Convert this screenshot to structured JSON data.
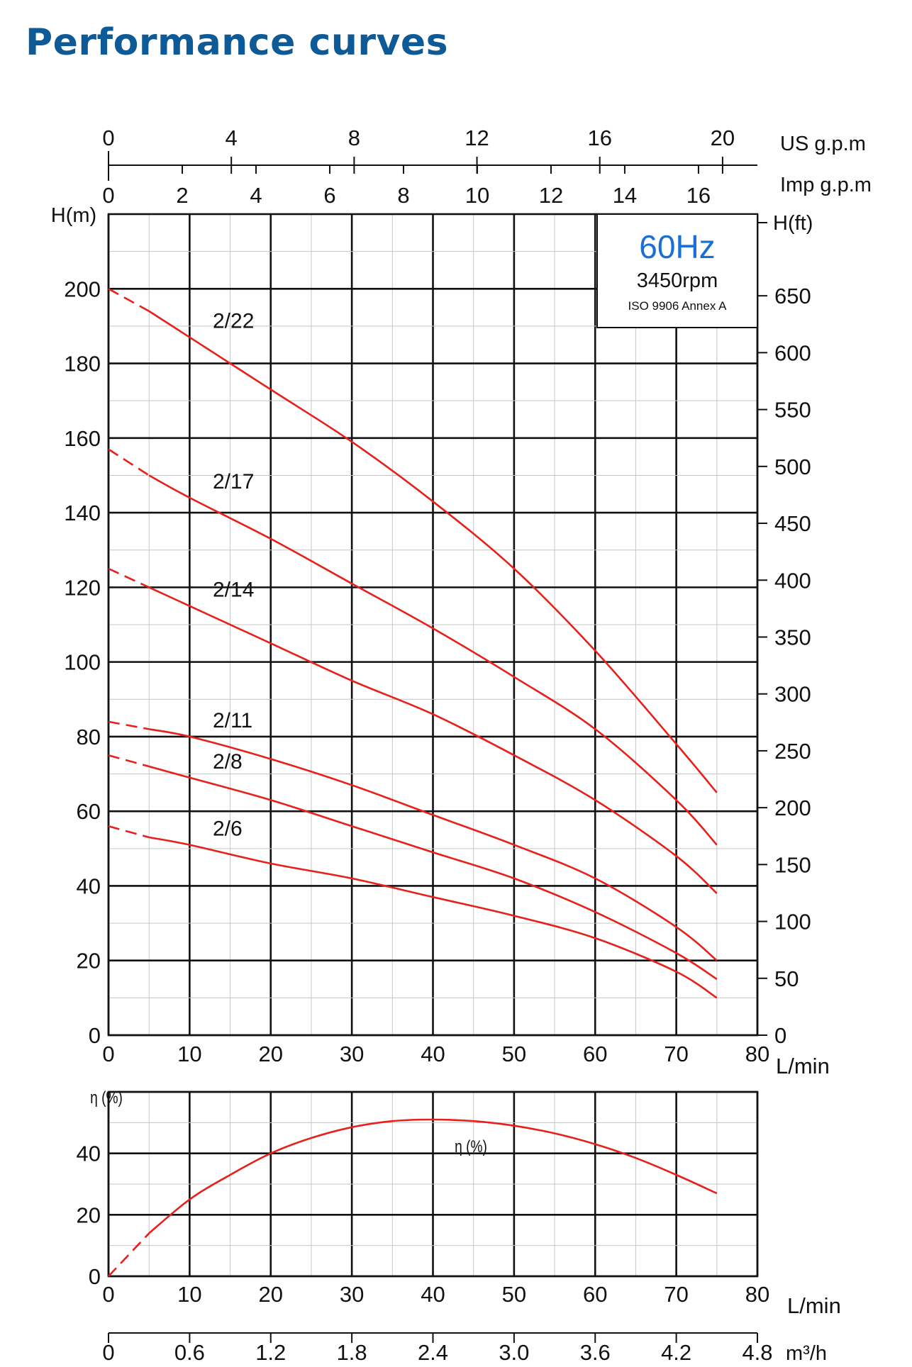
{
  "page": {
    "title": "Performance curves"
  },
  "chart_data": {
    "type": "line",
    "info_box": {
      "frequency": "60Hz",
      "speed": "3450rpm",
      "standard": "ISO 9906 Annex A"
    },
    "axes": {
      "flow": {
        "label": "L/min",
        "ticks": [
          0,
          10,
          20,
          30,
          40,
          50,
          60,
          70,
          80
        ],
        "range": [
          0,
          80
        ]
      },
      "head_m": {
        "label": "H(m)",
        "ticks": [
          0,
          20,
          40,
          60,
          80,
          100,
          120,
          140,
          160,
          180,
          200
        ],
        "range": [
          0,
          220
        ]
      },
      "head_ft": {
        "label": "H(ft)",
        "ticks": [
          0,
          50,
          100,
          150,
          200,
          250,
          300,
          350,
          400,
          450,
          500,
          550,
          600,
          650
        ]
      },
      "us_gpm": {
        "label": "US g.p.m",
        "ticks": [
          0,
          4,
          8,
          12,
          16,
          20
        ]
      },
      "imp_gpm": {
        "label": "Imp g.p.m",
        "ticks": [
          0,
          2,
          4,
          6,
          8,
          10,
          12,
          14,
          16
        ]
      },
      "efficiency": {
        "label": "η (%)",
        "ticks": [
          0,
          20,
          40
        ],
        "range": [
          0,
          60
        ]
      },
      "m3h": {
        "label": "m³/h",
        "ticks": [
          "0",
          "0.6",
          "1.2",
          "1.8",
          "2.4",
          "3.0",
          "3.6",
          "4.2",
          "4.8"
        ]
      }
    },
    "series": [
      {
        "name": "2/22",
        "x": [
          0,
          5,
          10,
          20,
          30,
          40,
          50,
          60,
          70,
          75
        ],
        "y": [
          200,
          194,
          187,
          173,
          159,
          143,
          125,
          103,
          78,
          65
        ]
      },
      {
        "name": "2/17",
        "x": [
          0,
          5,
          10,
          20,
          30,
          40,
          50,
          60,
          70,
          75
        ],
        "y": [
          157,
          150,
          144,
          133,
          121,
          109,
          96,
          82,
          63,
          51
        ]
      },
      {
        "name": "2/14",
        "x": [
          0,
          5,
          10,
          20,
          30,
          40,
          50,
          60,
          70,
          75
        ],
        "y": [
          125,
          120,
          115,
          105,
          95,
          86,
          75,
          63,
          48,
          38
        ]
      },
      {
        "name": "2/11",
        "x": [
          0,
          5,
          10,
          20,
          30,
          40,
          50,
          60,
          70,
          75
        ],
        "y": [
          84,
          82,
          80,
          74,
          67,
          59,
          51,
          42,
          29,
          20
        ]
      },
      {
        "name": "2/8",
        "x": [
          0,
          5,
          10,
          20,
          30,
          40,
          50,
          60,
          70,
          75
        ],
        "y": [
          75,
          72,
          69,
          63,
          56,
          49,
          42,
          33,
          22,
          15
        ]
      },
      {
        "name": "2/6",
        "x": [
          0,
          5,
          10,
          20,
          30,
          40,
          50,
          60,
          70,
          75
        ],
        "y": [
          56,
          53,
          51,
          46,
          42,
          37,
          32,
          26,
          17,
          10
        ]
      }
    ],
    "efficiency_series": {
      "name": "η (%)",
      "x": [
        0,
        5,
        10,
        15,
        20,
        25,
        30,
        35,
        40,
        45,
        50,
        55,
        60,
        65,
        70,
        75
      ],
      "y": [
        0,
        14,
        25,
        33,
        40,
        45,
        48.5,
        50.5,
        51,
        50.5,
        49,
        46.5,
        43,
        38.5,
        33,
        27
      ]
    }
  }
}
